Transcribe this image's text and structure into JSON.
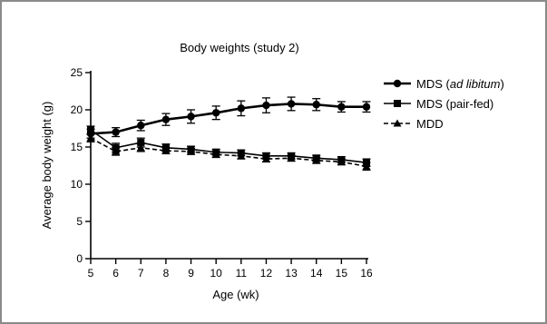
{
  "chart_data": {
    "type": "line",
    "title": "Body weights (study 2)",
    "xlabel": "Age (wk)",
    "ylabel": "Average body weight (g)",
    "x": [
      5,
      6,
      7,
      8,
      9,
      10,
      11,
      12,
      13,
      14,
      15,
      16
    ],
    "xlim": [
      5,
      16
    ],
    "ylim": [
      0,
      25
    ],
    "x_ticks": [
      "5",
      "6",
      "7",
      "8",
      "9",
      "10",
      "11",
      "12",
      "13",
      "14",
      "15",
      "16"
    ],
    "y_ticks": [
      "0",
      "5",
      "10",
      "15",
      "20",
      "25"
    ],
    "legend_position": "right",
    "series": [
      {
        "key": "mds_ad",
        "name": "MDS (ad libitum)",
        "legend_prefix": "MDS (",
        "legend_italic": "ad libitum",
        "legend_suffix": ")",
        "marker": "circle",
        "linestyle": "solid",
        "values": [
          16.8,
          17.0,
          17.9,
          18.7,
          19.1,
          19.6,
          20.2,
          20.6,
          20.8,
          20.7,
          20.4,
          20.4
        ],
        "errors": [
          0.6,
          0.6,
          0.7,
          0.8,
          0.9,
          0.9,
          1.0,
          1.0,
          0.9,
          0.8,
          0.7,
          0.7
        ]
      },
      {
        "key": "mds_pair",
        "name": "MDS (pair-fed)",
        "marker": "square",
        "linestyle": "solid",
        "values": [
          17.3,
          14.9,
          15.6,
          14.9,
          14.7,
          14.3,
          14.2,
          13.8,
          13.8,
          13.5,
          13.3,
          12.9
        ],
        "errors": [
          0.5,
          0.6,
          0.6,
          0.5,
          0.4,
          0.4,
          0.4,
          0.4,
          0.4,
          0.4,
          0.4,
          0.5
        ]
      },
      {
        "key": "mdd",
        "name": "MDD",
        "marker": "triangle",
        "linestyle": "dashed",
        "values": [
          16.2,
          14.4,
          14.9,
          14.5,
          14.4,
          14.0,
          13.8,
          13.4,
          13.5,
          13.2,
          13.0,
          12.4
        ],
        "errors": [
          0.5,
          0.5,
          0.5,
          0.4,
          0.4,
          0.4,
          0.4,
          0.4,
          0.4,
          0.4,
          0.4,
          0.5
        ]
      }
    ]
  }
}
